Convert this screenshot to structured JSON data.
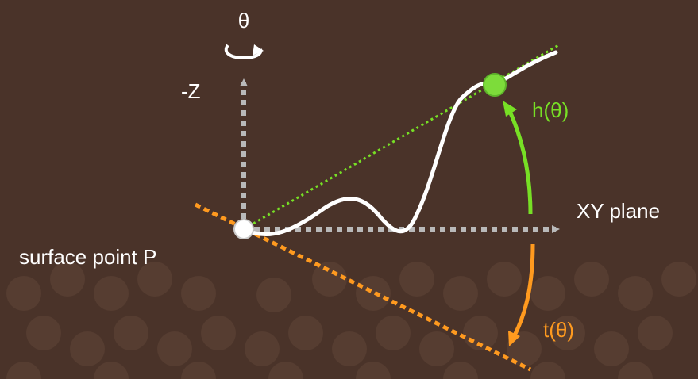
{
  "labels": {
    "theta": "θ",
    "neg_z": "-Z",
    "h_theta": "h(θ)",
    "xy_plane": "XY plane",
    "surface_point": "surface point P",
    "t_theta": "t(θ)"
  },
  "colors": {
    "background": "#4a3329",
    "pattern": "#563d31",
    "axis": "#b9b9b9",
    "curve": "#ffffff",
    "horizon": "#77e025",
    "tangent": "#ff9a1f"
  }
}
